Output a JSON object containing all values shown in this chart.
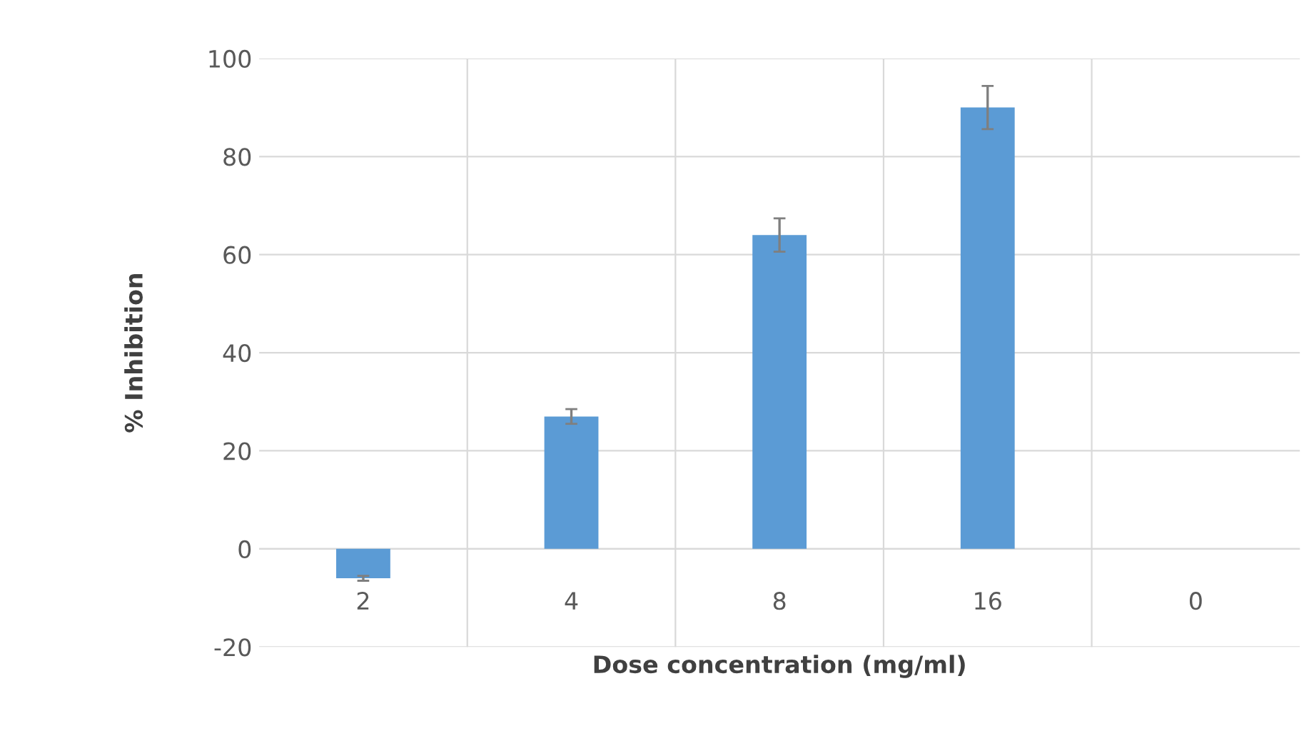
{
  "chart_data": {
    "type": "bar",
    "xlabel": "Dose concentration (mg/ml)",
    "ylabel": "% Inhibition",
    "categories": [
      "2",
      "4",
      "8",
      "16",
      "0"
    ],
    "values": [
      -6,
      27,
      64,
      90,
      0
    ],
    "errors": [
      0.5,
      1.5,
      3.4,
      4.4,
      null
    ],
    "color": "#5b9bd5",
    "ylim": [
      -20,
      100
    ],
    "yticks": [
      -20,
      0,
      20,
      40,
      60,
      80,
      100
    ],
    "grid": true
  }
}
